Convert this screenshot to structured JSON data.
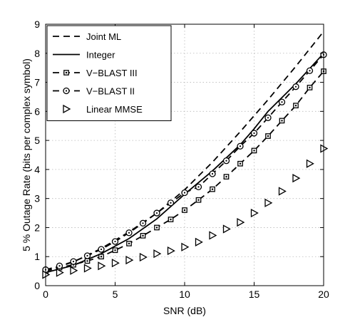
{
  "chart_data": {
    "type": "line",
    "xlabel": "SNR (dB)",
    "ylabel": "5 % Outage Rate (bits per complex symbol)",
    "xlim": [
      0,
      20
    ],
    "ylim": [
      0,
      9
    ],
    "xticks": [
      0,
      5,
      10,
      15,
      20
    ],
    "yticks": [
      0,
      1,
      2,
      3,
      4,
      5,
      6,
      7,
      8,
      9
    ],
    "grid": true,
    "legend_position": "top-left",
    "series": [
      {
        "name": "Joint ML",
        "style": "dashed",
        "marker": "none",
        "x": [
          0,
          2,
          4,
          6,
          8,
          10,
          12,
          14,
          16,
          18,
          20
        ],
        "y": [
          0.5,
          0.82,
          1.28,
          1.85,
          2.5,
          3.3,
          4.25,
          5.3,
          6.4,
          7.55,
          8.75
        ]
      },
      {
        "name": "Integer",
        "style": "solid",
        "marker": "none",
        "x": [
          0,
          2,
          4,
          6,
          8,
          10,
          12,
          14,
          15,
          16,
          18,
          20
        ],
        "y": [
          0.45,
          0.7,
          1.1,
          1.62,
          2.3,
          3.15,
          3.95,
          4.85,
          5.4,
          6.0,
          6.95,
          8.0
        ]
      },
      {
        "name": "V−BLAST III",
        "style": "dashed",
        "marker": "square",
        "x": [
          0,
          1,
          2,
          3,
          4,
          5,
          6,
          7,
          8,
          9,
          10,
          11,
          12,
          13,
          14,
          15,
          16,
          17,
          18,
          19,
          20
        ],
        "y": [
          0.5,
          0.62,
          0.72,
          0.85,
          1.0,
          1.22,
          1.45,
          1.72,
          2.0,
          2.28,
          2.6,
          2.95,
          3.32,
          3.75,
          4.2,
          4.65,
          5.15,
          5.68,
          6.2,
          6.82,
          7.38
        ]
      },
      {
        "name": "V−BLAST II",
        "style": "dashed",
        "marker": "circle",
        "x": [
          0,
          1,
          2,
          3,
          4,
          5,
          6,
          7,
          8,
          9,
          10,
          11,
          12,
          13,
          14,
          15,
          16,
          17,
          18,
          19,
          20
        ],
        "y": [
          0.55,
          0.68,
          0.83,
          1.03,
          1.25,
          1.52,
          1.82,
          2.15,
          2.5,
          2.85,
          3.2,
          3.4,
          3.85,
          4.3,
          4.8,
          5.25,
          5.78,
          6.32,
          6.85,
          7.4,
          7.95
        ]
      },
      {
        "name": "Linear MMSE",
        "style": "none",
        "marker": "triangle-right",
        "x": [
          0,
          1,
          2,
          3,
          4,
          5,
          6,
          7,
          8,
          9,
          10,
          11,
          12,
          13,
          14,
          15,
          16,
          17,
          18,
          19,
          20
        ],
        "y": [
          0.38,
          0.45,
          0.52,
          0.6,
          0.68,
          0.78,
          0.88,
          0.98,
          1.1,
          1.2,
          1.33,
          1.5,
          1.73,
          1.95,
          2.18,
          2.5,
          2.85,
          3.25,
          3.7,
          4.2,
          4.72
        ]
      }
    ]
  }
}
